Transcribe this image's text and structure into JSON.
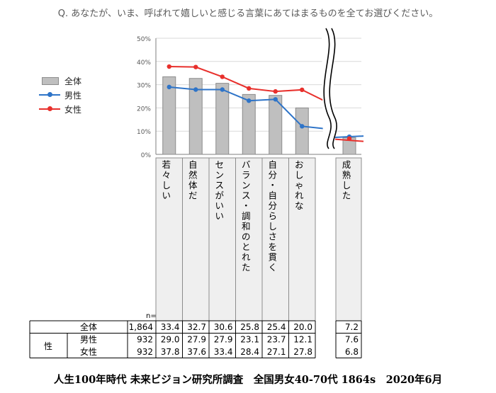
{
  "question": "Q. あなたが、いま、呼ばれて嬉しいと感じる言葉にあてはまるものを全てお選びください。",
  "footer": "人生100年時代 未来ビジョン研究所調査　全国男女40-70代 1864s　2020年6月",
  "colors": {
    "bar": "#bfbfbf",
    "bar_border": "#8c8c8c",
    "male": "#2e74c8",
    "female": "#e8302c",
    "axis": "#7f7f7f",
    "grid": "#d9d9d9"
  },
  "legend": [
    {
      "name": "全体",
      "kind": "bar"
    },
    {
      "name": "男性",
      "kind": "line_male"
    },
    {
      "name": "女性",
      "kind": "line_female"
    }
  ],
  "chart_data": {
    "type": "bar",
    "categories": [
      "若々しい",
      "自然体だ",
      "センスがいい",
      "バランス・調和のとれた",
      "自分・自分らしさを貫く",
      "おしゃれな",
      "成熟した"
    ],
    "ylim": [
      0,
      50
    ],
    "yticks": [
      0,
      10,
      20,
      30,
      40,
      50
    ],
    "ytick_labels": [
      "0%",
      "10%",
      "20%",
      "30%",
      "40%",
      "50%"
    ],
    "axis_break_after_index": 5,
    "series": [
      {
        "name": "全体",
        "type": "bar",
        "values": [
          33.4,
          32.7,
          30.6,
          25.8,
          25.4,
          20.0,
          7.2
        ]
      },
      {
        "name": "男性",
        "type": "line",
        "values": [
          29.0,
          27.9,
          27.9,
          23.1,
          23.7,
          12.1,
          7.6
        ]
      },
      {
        "name": "女性",
        "type": "line",
        "values": [
          37.8,
          37.6,
          33.4,
          28.4,
          27.1,
          27.8,
          6.8
        ]
      }
    ],
    "table": {
      "n_header": "n=",
      "group_label": "性",
      "rows": [
        {
          "label": "全体",
          "n": "1,864",
          "values": [
            "33.4",
            "32.7",
            "30.6",
            "25.8",
            "25.4",
            "20.0",
            "7.2"
          ]
        },
        {
          "label": "男性",
          "n": "932",
          "values": [
            "29.0",
            "27.9",
            "27.9",
            "23.1",
            "23.7",
            "12.1",
            "7.6"
          ]
        },
        {
          "label": "女性",
          "n": "932",
          "values": [
            "37.8",
            "37.6",
            "33.4",
            "28.4",
            "27.1",
            "27.8",
            "6.8"
          ]
        }
      ]
    }
  }
}
